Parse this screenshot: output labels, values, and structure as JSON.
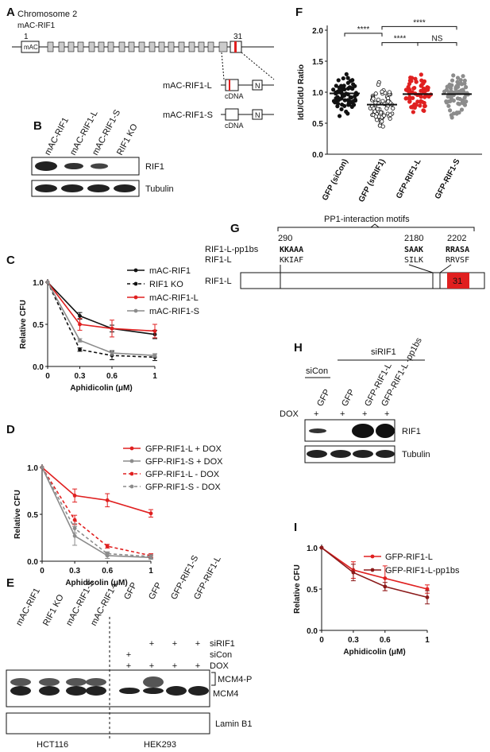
{
  "panels": {
    "A": "A",
    "B": "B",
    "C": "C",
    "D": "D",
    "E": "E",
    "F": "F",
    "G": "G",
    "H": "H",
    "I": "I"
  },
  "panelA": {
    "title": "Chromosome 2",
    "subtitle": "mAC-RIF1",
    "exon_first": "1",
    "exon_last": "31",
    "mac_label": "mAC",
    "construct_L": "mAC-RIF1-L",
    "construct_S": "mAC-RIF1-S",
    "cdna": "cDNA",
    "n_label": "N"
  },
  "panelB": {
    "lanes": [
      "mAC-RIF1",
      "mAC-RIF1-L",
      "mAC-RIF1-S",
      "RIF1 KO"
    ],
    "band1": "RIF1",
    "band2": "Tubulin"
  },
  "panelC": {
    "legend": [
      "mAC-RIF1",
      "RIF1 KO",
      "mAC-RIF1-L",
      "mAC-RIF1-S"
    ]
  },
  "panelD": {
    "legend": [
      "GFP-RIF1-L + DOX",
      "GFP-RIF1-S + DOX",
      "GFP-RIF1-L - DOX",
      "GFP-RIF1-S - DOX"
    ]
  },
  "panelE": {
    "lanes": [
      "mAC-RIF1",
      "RIF1 KO",
      "mAC-RIF1-S",
      "mAC-RIF1-L",
      "GFP",
      "GFP",
      "GFP-RIF1-S",
      "GFP-RIF1-L"
    ],
    "rows": [
      {
        "label": "siRIF1",
        "marks": [
          "",
          "+",
          "+",
          "+"
        ]
      },
      {
        "label": "siCon",
        "marks": [
          "+",
          "",
          "",
          ""
        ]
      },
      {
        "label": "DOX",
        "marks": [
          "+",
          "+",
          "+",
          "+"
        ]
      }
    ],
    "band1": "MCM4-P",
    "band2": "MCM4",
    "band3": "Lamin B1",
    "cell1": "HCT116",
    "cell2": "HEK293"
  },
  "panelG": {
    "header": "PP1-interaction motifs",
    "positions": [
      "290",
      "2180",
      "2202"
    ],
    "row1": "RIF1-L-pp1bs",
    "row2": "RIF1-L",
    "motifs_pp1bs": [
      "KKAAA",
      "SAAK",
      "RRASA"
    ],
    "motifs_wt": [
      "KKIAF",
      "SILK",
      "RRVSF"
    ],
    "protein": "RIF1-L",
    "exon": "31"
  },
  "panelH": {
    "group1": "siCon",
    "group2": "siRIF1",
    "lanes": [
      "GFP",
      "GFP",
      "GFP-RIF1-L",
      "GFP-RIF1-L\n-pp1bs"
    ],
    "dox": "DOX",
    "dox_marks": [
      "+",
      "+",
      "+",
      "+"
    ],
    "band1": "RIF1",
    "band2": "Tubulin"
  },
  "panelI": {
    "legend": [
      "GFP-RIF1-L",
      "GFP-RIF1-L-pp1bs"
    ]
  },
  "colors": {
    "red": "#e02020",
    "darkred": "#8b1a1a",
    "grey": "#8c8c8c",
    "black": "#111111",
    "exon": "#cccccc"
  },
  "chart_data": [
    {
      "id": "C",
      "type": "line",
      "xlabel": "Aphidicolin (μM)",
      "ylabel": "Relative CFU",
      "x": [
        0,
        0.3,
        0.6,
        1
      ],
      "xticks": [
        "0",
        "0.3",
        "0.6",
        "1"
      ],
      "yticks": [
        "0.0",
        "0.5",
        "1.0"
      ],
      "ylim": [
        0,
        1
      ],
      "series": [
        {
          "name": "mAC-RIF1",
          "values": [
            1,
            0.6,
            0.45,
            0.38
          ],
          "err": [
            0,
            0.04,
            0.04,
            0.05
          ],
          "color": "#111111",
          "dash": false
        },
        {
          "name": "RIF1 KO",
          "values": [
            1,
            0.2,
            0.13,
            0.11
          ],
          "err": [
            0,
            0.02,
            0.05,
            0.04
          ],
          "color": "#111111",
          "dash": true
        },
        {
          "name": "mAC-RIF1-L",
          "values": [
            1,
            0.5,
            0.45,
            0.42
          ],
          "err": [
            0,
            0.07,
            0.1,
            0.08
          ],
          "color": "#e02020",
          "dash": false
        },
        {
          "name": "mAC-RIF1-S",
          "values": [
            1,
            0.31,
            0.16,
            0.13
          ],
          "err": [
            0,
            0.02,
            0.03,
            0.02
          ],
          "color": "#8c8c8c",
          "dash": false
        }
      ]
    },
    {
      "id": "D",
      "type": "line",
      "xlabel": "Aphidicolin (μM)",
      "ylabel": "Relative CFU",
      "x": [
        0,
        0.3,
        0.6,
        1
      ],
      "xticks": [
        "0",
        "0.3",
        "0.6",
        "1"
      ],
      "yticks": [
        "0.0",
        "0.5",
        "1.0"
      ],
      "ylim": [
        0,
        1
      ],
      "series": [
        {
          "name": "GFP-RIF1-L + DOX",
          "values": [
            1,
            0.7,
            0.65,
            0.51
          ],
          "err": [
            0,
            0.07,
            0.07,
            0.04
          ],
          "color": "#e02020",
          "dash": false
        },
        {
          "name": "GFP-RIF1-S + DOX",
          "values": [
            1,
            0.27,
            0.06,
            0.04
          ],
          "err": [
            0,
            0.1,
            0.03,
            0.02
          ],
          "color": "#8c8c8c",
          "dash": false
        },
        {
          "name": "GFP-RIF1-L - DOX",
          "values": [
            1,
            0.44,
            0.16,
            0.06
          ],
          "err": [
            0,
            0.05,
            0.02,
            0.02
          ],
          "color": "#e02020",
          "dash": true
        },
        {
          "name": "GFP-RIF1-S - DOX",
          "values": [
            1,
            0.35,
            0.08,
            0.05
          ],
          "err": [
            0,
            0.05,
            0.02,
            0.02
          ],
          "color": "#8c8c8c",
          "dash": true
        }
      ]
    },
    {
      "id": "F",
      "type": "scatter",
      "ylabel": "IdU/CldU Ratio",
      "categories": [
        "GFP (siCon)",
        "GFP (siRIF1)",
        "GFP-RIF1-L",
        "GFP-RIF1-S"
      ],
      "yticks": [
        "0.0",
        "0.5",
        "1.0",
        "1.5",
        "2.0"
      ],
      "ylim": [
        0,
        2
      ],
      "medians": [
        0.98,
        0.8,
        0.97,
        0.97
      ],
      "colors": [
        "#111111",
        "#111111",
        "#e02020",
        "#8c8c8c"
      ],
      "filled": [
        true,
        false,
        true,
        true
      ],
      "significance": [
        {
          "pair": [
            0,
            1
          ],
          "label": "****"
        },
        {
          "pair": [
            1,
            2
          ],
          "label": "****"
        },
        {
          "pair": [
            2,
            3
          ],
          "label": "NS"
        },
        {
          "pair": [
            1,
            3
          ],
          "label": "****"
        }
      ]
    },
    {
      "id": "I",
      "type": "line",
      "xlabel": "Aphidicolin (μM)",
      "ylabel": "Relative CFU",
      "x": [
        0,
        0.3,
        0.6,
        1
      ],
      "xticks": [
        "0",
        "0.3",
        "0.6",
        "1"
      ],
      "yticks": [
        "0.0",
        "0.5",
        "1.0"
      ],
      "ylim": [
        0,
        1
      ],
      "series": [
        {
          "name": "GFP-RIF1-L",
          "values": [
            1,
            0.73,
            0.63,
            0.5
          ],
          "err": [
            0,
            0.1,
            0.15,
            0.05
          ],
          "color": "#e02020",
          "dash": false
        },
        {
          "name": "GFP-RIF1-L-pp1bs",
          "values": [
            1,
            0.7,
            0.53,
            0.4
          ],
          "err": [
            0,
            0.1,
            0.05,
            0.08
          ],
          "color": "#8b1a1a",
          "dash": false
        }
      ]
    }
  ]
}
